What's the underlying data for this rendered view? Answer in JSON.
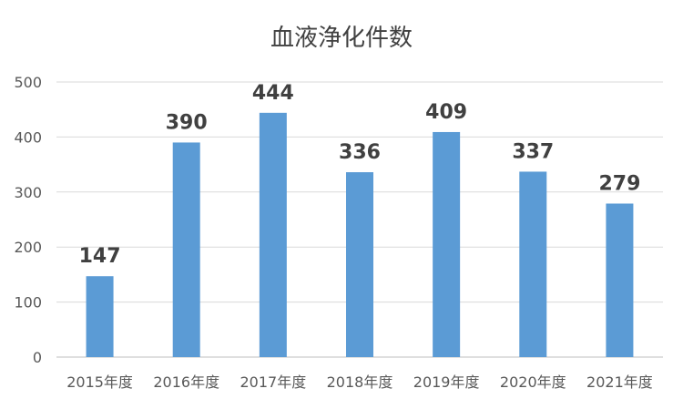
{
  "chart_data": {
    "type": "bar",
    "title": "血液浄化件数",
    "xlabel": "",
    "ylabel": "",
    "categories": [
      "2015年度",
      "2016年度",
      "2017年度",
      "2018年度",
      "2019年度",
      "2020年度",
      "2021年度"
    ],
    "values": [
      147,
      390,
      444,
      336,
      409,
      337,
      279
    ],
    "data_labels": [
      "147",
      "390",
      "444",
      "336",
      "409",
      "337",
      "279"
    ],
    "ylim": [
      0,
      500
    ],
    "y_ticks": [
      0,
      100,
      200,
      300,
      400,
      500
    ],
    "y_tick_labels": [
      "0",
      "100",
      "200",
      "300",
      "400",
      "500"
    ],
    "grid": true,
    "legend": "none",
    "colors": {
      "bar": "#5b9bd5"
    }
  }
}
